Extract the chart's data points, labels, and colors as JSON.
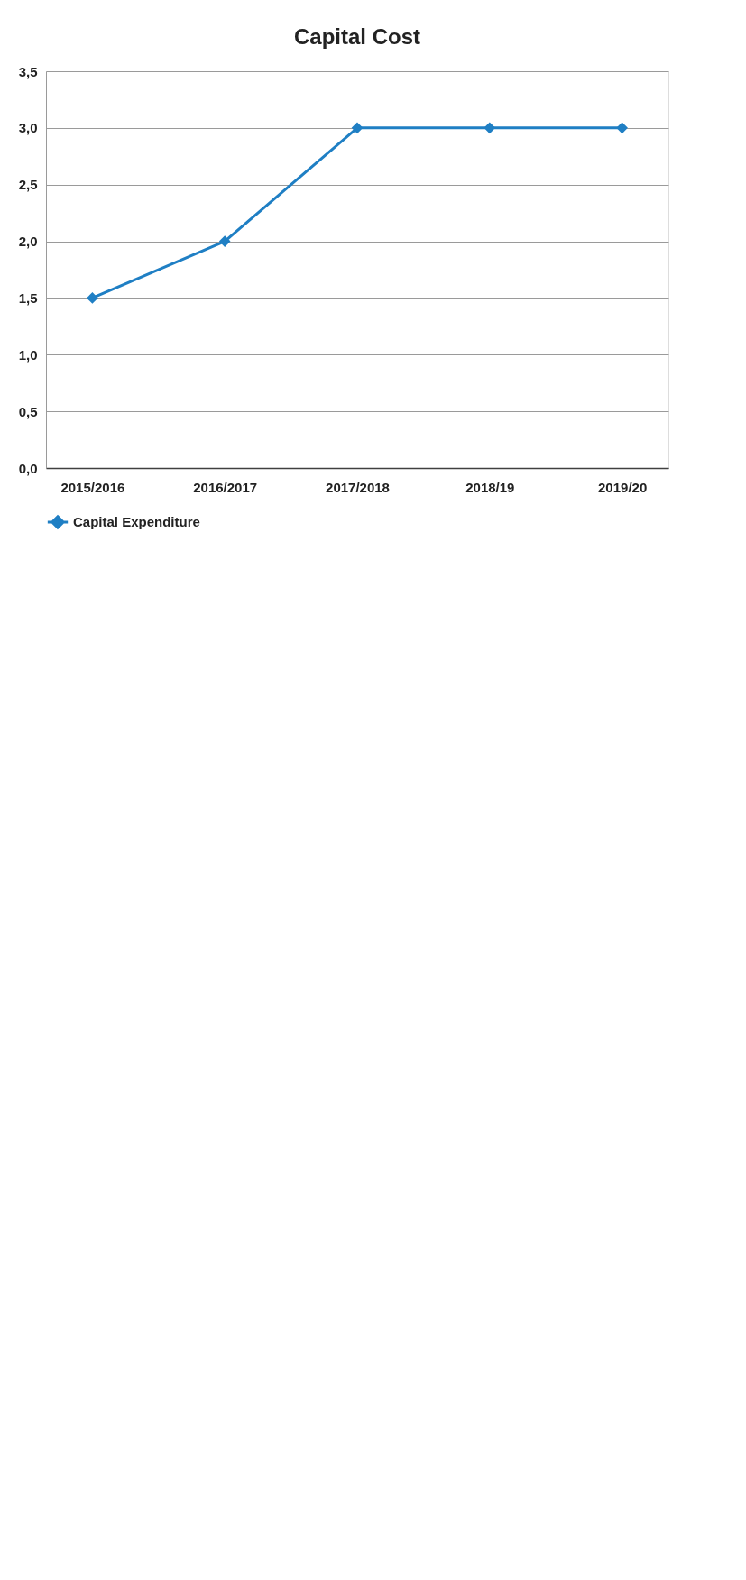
{
  "chart_data": {
    "type": "line",
    "title": "Capital Cost",
    "categories": [
      "2015/2016",
      "2016/2017",
      "2017/2018",
      "2018/19",
      "2019/20"
    ],
    "series": [
      {
        "name": "Capital Expenditure",
        "color": "#1f7fc4",
        "values": [
          1.5,
          2.0,
          3.0,
          3.0,
          3.0
        ]
      }
    ],
    "ylim": [
      0,
      3.5
    ],
    "yticks": [
      {
        "value": 0,
        "label": "0,0"
      },
      {
        "value": 0.5,
        "label": "0,5"
      },
      {
        "value": 1,
        "label": "1,0"
      },
      {
        "value": 1.5,
        "label": "1,5"
      },
      {
        "value": 2,
        "label": "2,0"
      },
      {
        "value": 2.5,
        "label": "2,5"
      },
      {
        "value": 3,
        "label": "3,0"
      },
      {
        "value": 3.5,
        "label": "3,5"
      }
    ],
    "grid": "y",
    "legend": "bottom",
    "marker": "diamond",
    "line_style": "solid"
  }
}
